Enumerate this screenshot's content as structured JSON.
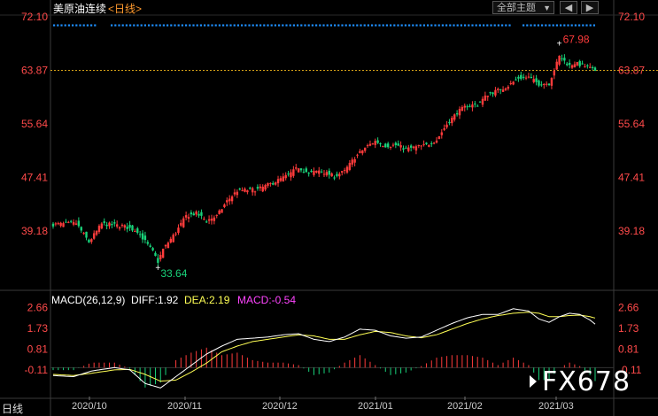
{
  "header": {
    "instrument": "美原油连续",
    "period": "<日线>",
    "theme_select": "全部主题",
    "nav_left": "◀",
    "nav_right": "▶"
  },
  "price_axis": {
    "labels": [
      "72.10",
      "63.87",
      "55.64",
      "47.41",
      "39.18"
    ],
    "values": [
      72.1,
      63.87,
      55.64,
      47.41,
      39.18
    ],
    "last_price": 63.87,
    "color": "#ff4a4a"
  },
  "macd": {
    "title": "MACD(26,12,9)",
    "diff_label": "DIFF:1.92",
    "dea_label": "DEA:2.19",
    "macd_label": "MACD:-0.54",
    "axis_labels": [
      "2.66",
      "1.73",
      "0.81",
      "-0.11"
    ],
    "axis_values": [
      2.66,
      1.73,
      0.81,
      -0.11
    ]
  },
  "annotations": {
    "high": "67.98",
    "low": "33.64"
  },
  "x_axis": [
    "2020/10",
    "2020/11",
    "2020/12",
    "2021/01",
    "2021/02",
    "2021/03"
  ],
  "status_tag": "日线",
  "watermark": "FX678",
  "colors": {
    "up": "#ff3b3b",
    "down": "#19d27a",
    "diff": "#ffffff",
    "dea": "#ffff55",
    "macd_label": "#ff44ff",
    "axis": "#ff4a4a",
    "dots": "#1e90ff",
    "high": "#ff3b3b",
    "low": "#19d27a"
  },
  "chart_data": {
    "type": "candlestick",
    "price_range": [
      30.5,
      72.1
    ],
    "candle_anchors": [
      [
        0,
        40.2
      ],
      [
        9,
        40.4
      ],
      [
        14,
        37.5
      ],
      [
        19,
        40.3
      ],
      [
        27,
        40.0
      ],
      [
        33,
        39.2
      ],
      [
        39,
        36.0
      ],
      [
        41,
        34.5
      ],
      [
        43,
        36.4
      ],
      [
        48,
        39.0
      ],
      [
        52,
        41.5
      ],
      [
        56,
        41.9
      ],
      [
        60,
        40.8
      ],
      [
        64,
        41.5
      ],
      [
        68,
        43.8
      ],
      [
        72,
        45.4
      ],
      [
        76,
        45.5
      ],
      [
        80,
        45.6
      ],
      [
        86,
        46.6
      ],
      [
        92,
        47.8
      ],
      [
        96,
        49.0
      ],
      [
        100,
        48.0
      ],
      [
        104,
        48.5
      ],
      [
        110,
        47.6
      ],
      [
        114,
        48.4
      ],
      [
        118,
        50.5
      ],
      [
        122,
        52.0
      ],
      [
        126,
        53.0
      ],
      [
        130,
        52.3
      ],
      [
        134,
        52.4
      ],
      [
        138,
        51.8
      ],
      [
        142,
        52.1
      ],
      [
        146,
        52.4
      ],
      [
        150,
        53.2
      ],
      [
        154,
        55.6
      ],
      [
        158,
        57.4
      ],
      [
        162,
        58.5
      ],
      [
        166,
        58.6
      ],
      [
        170,
        60.2
      ],
      [
        174,
        60.8
      ],
      [
        178,
        61.5
      ],
      [
        182,
        62.7
      ],
      [
        186,
        62.8
      ],
      [
        190,
        61.8
      ],
      [
        194,
        61.9
      ],
      [
        198,
        66.0
      ],
      [
        202,
        64.6
      ],
      [
        204,
        65.0
      ],
      [
        208,
        64.5
      ],
      [
        212,
        63.87
      ]
    ],
    "macd_anchors": [
      [
        0,
        -0.35,
        -0.3
      ],
      [
        8,
        -0.4,
        -0.35
      ],
      [
        15,
        -0.15,
        -0.25
      ],
      [
        24,
        0.0,
        -0.1
      ],
      [
        30,
        -0.1,
        -0.08
      ],
      [
        36,
        -0.7,
        -0.3
      ],
      [
        42,
        -0.9,
        -0.6
      ],
      [
        48,
        -0.4,
        -0.55
      ],
      [
        54,
        0.1,
        -0.2
      ],
      [
        60,
        0.6,
        0.2
      ],
      [
        66,
        0.95,
        0.7
      ],
      [
        72,
        1.25,
        0.95
      ],
      [
        78,
        1.3,
        1.15
      ],
      [
        84,
        1.35,
        1.25
      ],
      [
        90,
        1.45,
        1.35
      ],
      [
        96,
        1.5,
        1.45
      ],
      [
        102,
        1.25,
        1.4
      ],
      [
        108,
        1.15,
        1.25
      ],
      [
        114,
        1.35,
        1.25
      ],
      [
        120,
        1.7,
        1.45
      ],
      [
        126,
        1.65,
        1.6
      ],
      [
        132,
        1.4,
        1.55
      ],
      [
        138,
        1.3,
        1.4
      ],
      [
        144,
        1.35,
        1.32
      ],
      [
        150,
        1.65,
        1.45
      ],
      [
        156,
        1.95,
        1.7
      ],
      [
        162,
        2.2,
        1.95
      ],
      [
        168,
        2.35,
        2.15
      ],
      [
        174,
        2.35,
        2.3
      ],
      [
        180,
        2.6,
        2.4
      ],
      [
        186,
        2.5,
        2.45
      ],
      [
        190,
        2.15,
        2.4
      ],
      [
        194,
        2.0,
        2.25
      ],
      [
        198,
        2.25,
        2.25
      ],
      [
        202,
        2.4,
        2.3
      ],
      [
        206,
        2.35,
        2.32
      ],
      [
        210,
        2.1,
        2.25
      ],
      [
        212,
        1.92,
        2.19
      ]
    ]
  }
}
